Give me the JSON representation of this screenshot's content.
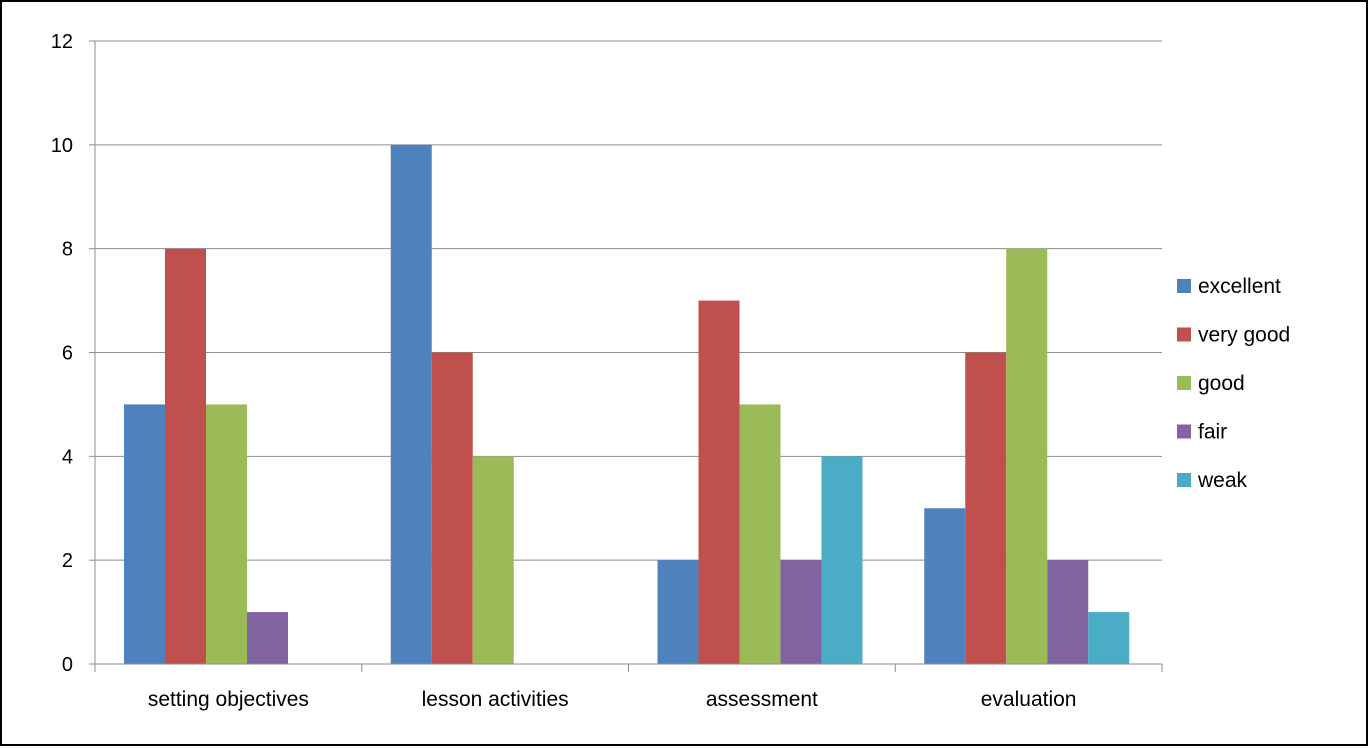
{
  "chart_data": {
    "type": "bar",
    "categories": [
      "setting objectives",
      "lesson activities",
      "assessment",
      "evaluation"
    ],
    "series": [
      {
        "name": "excellent",
        "color": "#4F81BD",
        "values": [
          5,
          10,
          2,
          3
        ]
      },
      {
        "name": "very good",
        "color": "#C0504D",
        "values": [
          8,
          6,
          7,
          6
        ]
      },
      {
        "name": "good",
        "color": "#9BBB59",
        "values": [
          5,
          4,
          5,
          8
        ]
      },
      {
        "name": "fair",
        "color": "#8064A2",
        "values": [
          1,
          0,
          2,
          2
        ]
      },
      {
        "name": "weak",
        "color": "#4BACC6",
        "values": [
          0,
          0,
          4,
          1
        ]
      }
    ],
    "ylim": [
      0,
      12
    ],
    "yticks": [
      0,
      2,
      4,
      6,
      8,
      10,
      12
    ],
    "title": "",
    "xlabel": "",
    "ylabel": "",
    "grid": true,
    "legend_position": "right"
  }
}
